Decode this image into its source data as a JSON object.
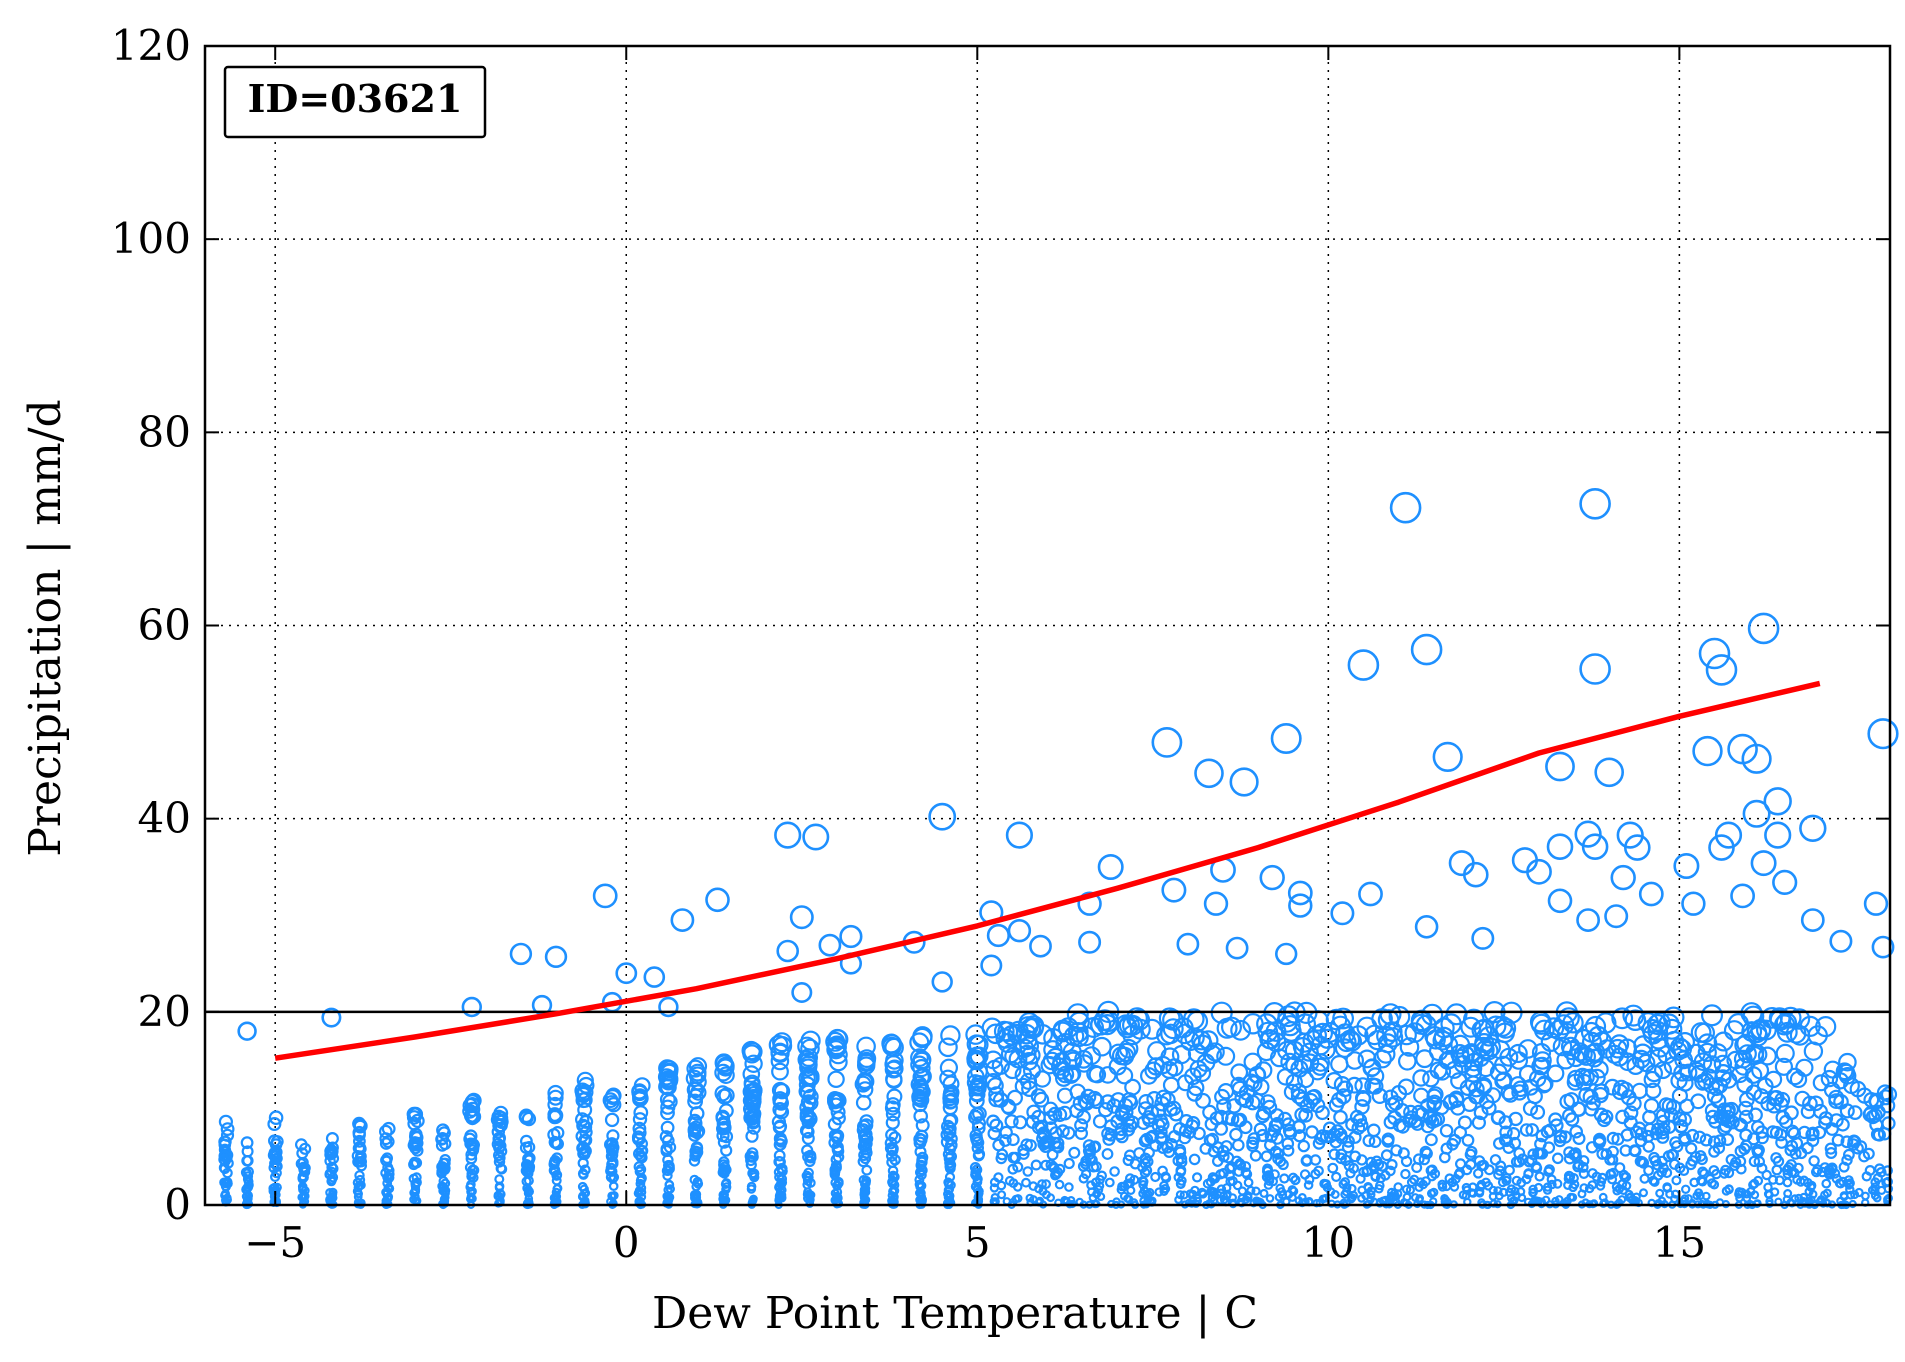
{
  "chart_data": {
    "type": "scatter",
    "title": "",
    "xlabel": "Dew Point Temperature | C",
    "ylabel": "Precipitation | mm/d",
    "xlim": [
      -6,
      18
    ],
    "ylim": [
      0,
      120
    ],
    "xticks": [
      -5,
      0,
      5,
      10,
      15
    ],
    "yticks": [
      0,
      20,
      40,
      60,
      80,
      100,
      120
    ],
    "grid": true,
    "colors": {
      "points": "#1e90ff",
      "fit": "#ff0000",
      "threshold": "#000000"
    },
    "annotation": {
      "text": "ID=03621",
      "placement": "top-left"
    },
    "threshold_line": {
      "y": 20
    },
    "fit_curve": {
      "x": [
        -5,
        -3,
        -1,
        1,
        3,
        5,
        7,
        9,
        11,
        13,
        15,
        17
      ],
      "y": [
        15.2,
        17.4,
        19.8,
        22.4,
        25.5,
        28.9,
        32.8,
        37.0,
        41.7,
        46.8,
        50.6,
        54.0
      ]
    },
    "notable_points": [
      {
        "x": -5.4,
        "y": 18.0
      },
      {
        "x": -4.2,
        "y": 19.4
      },
      {
        "x": -2.2,
        "y": 20.5
      },
      {
        "x": -1.5,
        "y": 26.0
      },
      {
        "x": -1.2,
        "y": 20.7
      },
      {
        "x": -1.0,
        "y": 25.7
      },
      {
        "x": -0.3,
        "y": 32.0
      },
      {
        "x": -0.2,
        "y": 21.0
      },
      {
        "x": 0.0,
        "y": 24.0
      },
      {
        "x": 0.4,
        "y": 23.6
      },
      {
        "x": 0.6,
        "y": 20.5
      },
      {
        "x": 0.8,
        "y": 29.5
      },
      {
        "x": 1.3,
        "y": 31.6
      },
      {
        "x": 2.3,
        "y": 38.3
      },
      {
        "x": 2.3,
        "y": 26.3
      },
      {
        "x": 2.5,
        "y": 29.8
      },
      {
        "x": 2.5,
        "y": 22.0
      },
      {
        "x": 2.7,
        "y": 38.1
      },
      {
        "x": 2.9,
        "y": 26.9
      },
      {
        "x": 3.2,
        "y": 27.8
      },
      {
        "x": 3.2,
        "y": 25.0
      },
      {
        "x": 4.1,
        "y": 27.2
      },
      {
        "x": 4.5,
        "y": 40.2
      },
      {
        "x": 4.5,
        "y": 23.1
      },
      {
        "x": 5.2,
        "y": 30.3
      },
      {
        "x": 5.2,
        "y": 24.8
      },
      {
        "x": 5.3,
        "y": 27.9
      },
      {
        "x": 5.6,
        "y": 38.3
      },
      {
        "x": 5.6,
        "y": 28.4
      },
      {
        "x": 5.9,
        "y": 26.8
      },
      {
        "x": 6.6,
        "y": 31.2
      },
      {
        "x": 6.6,
        "y": 27.2
      },
      {
        "x": 6.9,
        "y": 35.0
      },
      {
        "x": 7.7,
        "y": 47.9
      },
      {
        "x": 7.8,
        "y": 32.6
      },
      {
        "x": 8.0,
        "y": 27.0
      },
      {
        "x": 8.3,
        "y": 44.7
      },
      {
        "x": 8.4,
        "y": 31.2
      },
      {
        "x": 8.5,
        "y": 34.7
      },
      {
        "x": 8.7,
        "y": 26.6
      },
      {
        "x": 8.8,
        "y": 43.8
      },
      {
        "x": 9.2,
        "y": 33.9
      },
      {
        "x": 9.4,
        "y": 48.3
      },
      {
        "x": 9.4,
        "y": 26.0
      },
      {
        "x": 9.6,
        "y": 32.3
      },
      {
        "x": 9.6,
        "y": 31.0
      },
      {
        "x": 10.2,
        "y": 30.2
      },
      {
        "x": 10.5,
        "y": 55.9
      },
      {
        "x": 10.6,
        "y": 32.2
      },
      {
        "x": 11.1,
        "y": 72.2
      },
      {
        "x": 11.4,
        "y": 57.5
      },
      {
        "x": 11.4,
        "y": 28.8
      },
      {
        "x": 11.7,
        "y": 46.4
      },
      {
        "x": 11.9,
        "y": 35.4
      },
      {
        "x": 12.1,
        "y": 34.2
      },
      {
        "x": 12.2,
        "y": 27.6
      },
      {
        "x": 12.8,
        "y": 35.7
      },
      {
        "x": 13.0,
        "y": 34.5
      },
      {
        "x": 13.3,
        "y": 45.4
      },
      {
        "x": 13.3,
        "y": 37.1
      },
      {
        "x": 13.3,
        "y": 31.5
      },
      {
        "x": 13.7,
        "y": 38.4
      },
      {
        "x": 13.7,
        "y": 29.5
      },
      {
        "x": 13.8,
        "y": 72.6
      },
      {
        "x": 13.8,
        "y": 55.5
      },
      {
        "x": 13.8,
        "y": 37.1
      },
      {
        "x": 14.0,
        "y": 44.8
      },
      {
        "x": 14.1,
        "y": 29.9
      },
      {
        "x": 14.2,
        "y": 33.9
      },
      {
        "x": 14.3,
        "y": 38.3
      },
      {
        "x": 14.4,
        "y": 37.0
      },
      {
        "x": 14.6,
        "y": 32.2
      },
      {
        "x": 15.1,
        "y": 35.1
      },
      {
        "x": 15.2,
        "y": 31.2
      },
      {
        "x": 15.4,
        "y": 47.0
      },
      {
        "x": 15.5,
        "y": 57.1
      },
      {
        "x": 15.6,
        "y": 55.4
      },
      {
        "x": 15.6,
        "y": 37.0
      },
      {
        "x": 15.7,
        "y": 38.3
      },
      {
        "x": 15.9,
        "y": 47.2
      },
      {
        "x": 15.9,
        "y": 32.0
      },
      {
        "x": 16.1,
        "y": 46.2
      },
      {
        "x": 16.1,
        "y": 40.5
      },
      {
        "x": 16.2,
        "y": 59.7
      },
      {
        "x": 16.2,
        "y": 35.4
      },
      {
        "x": 16.4,
        "y": 41.8
      },
      {
        "x": 16.4,
        "y": 38.3
      },
      {
        "x": 16.5,
        "y": 33.4
      },
      {
        "x": 16.9,
        "y": 39.0
      },
      {
        "x": 16.9,
        "y": 29.5
      },
      {
        "x": 17.3,
        "y": 27.3
      },
      {
        "x": 17.8,
        "y": 31.2
      },
      {
        "x": 17.9,
        "y": 48.8
      },
      {
        "x": 17.9,
        "y": 26.7
      }
    ],
    "dense_columns": [
      {
        "x": -5.7,
        "max": 9
      },
      {
        "x": -5.4,
        "max": 6.5
      },
      {
        "x": -5.0,
        "max": 9.5
      },
      {
        "x": -4.6,
        "max": 6.5
      },
      {
        "x": -4.2,
        "max": 8
      },
      {
        "x": -3.8,
        "max": 8.5
      },
      {
        "x": -3.4,
        "max": 9
      },
      {
        "x": -3.0,
        "max": 10
      },
      {
        "x": -2.6,
        "max": 9
      },
      {
        "x": -2.2,
        "max": 11
      },
      {
        "x": -1.8,
        "max": 10
      },
      {
        "x": -1.4,
        "max": 11
      },
      {
        "x": -1.0,
        "max": 12
      },
      {
        "x": -0.6,
        "max": 13
      },
      {
        "x": -0.2,
        "max": 12
      },
      {
        "x": 0.2,
        "max": 13
      },
      {
        "x": 0.6,
        "max": 15
      },
      {
        "x": 1.0,
        "max": 16
      },
      {
        "x": 1.4,
        "max": 15
      },
      {
        "x": 1.8,
        "max": 16
      },
      {
        "x": 2.2,
        "max": 17
      },
      {
        "x": 2.6,
        "max": 18
      },
      {
        "x": 3.0,
        "max": 18
      },
      {
        "x": 3.4,
        "max": 17
      },
      {
        "x": 3.8,
        "max": 17
      },
      {
        "x": 4.2,
        "max": 18
      },
      {
        "x": 4.6,
        "max": 18
      },
      {
        "x": 5.0,
        "max": 18
      },
      {
        "x": 5.4,
        "max": 19
      },
      {
        "x": 5.8,
        "max": 19
      },
      {
        "x": 6.2,
        "max": 19
      },
      {
        "x": 6.6,
        "max": 20
      },
      {
        "x": 7.0,
        "max": 20
      },
      {
        "x": 7.4,
        "max": 20
      },
      {
        "x": 7.8,
        "max": 20
      },
      {
        "x": 8.2,
        "max": 20
      },
      {
        "x": 8.6,
        "max": 20
      },
      {
        "x": 9.0,
        "max": 20
      },
      {
        "x": 9.4,
        "max": 20
      },
      {
        "x": 9.8,
        "max": 20
      },
      {
        "x": 10.2,
        "max": 20
      },
      {
        "x": 10.6,
        "max": 20
      },
      {
        "x": 11.0,
        "max": 20
      },
      {
        "x": 11.4,
        "max": 20
      },
      {
        "x": 11.8,
        "max": 20
      },
      {
        "x": 12.2,
        "max": 20
      },
      {
        "x": 12.6,
        "max": 20
      },
      {
        "x": 13.0,
        "max": 20
      },
      {
        "x": 13.4,
        "max": 20
      },
      {
        "x": 13.8,
        "max": 20
      },
      {
        "x": 14.2,
        "max": 20
      },
      {
        "x": 14.6,
        "max": 20
      },
      {
        "x": 15.0,
        "max": 20
      },
      {
        "x": 15.4,
        "max": 20
      },
      {
        "x": 15.8,
        "max": 20
      },
      {
        "x": 16.2,
        "max": 20
      },
      {
        "x": 16.6,
        "max": 20
      },
      {
        "x": 17.0,
        "max": 19
      },
      {
        "x": 17.4,
        "max": 15
      },
      {
        "x": 17.8,
        "max": 13
      }
    ]
  }
}
